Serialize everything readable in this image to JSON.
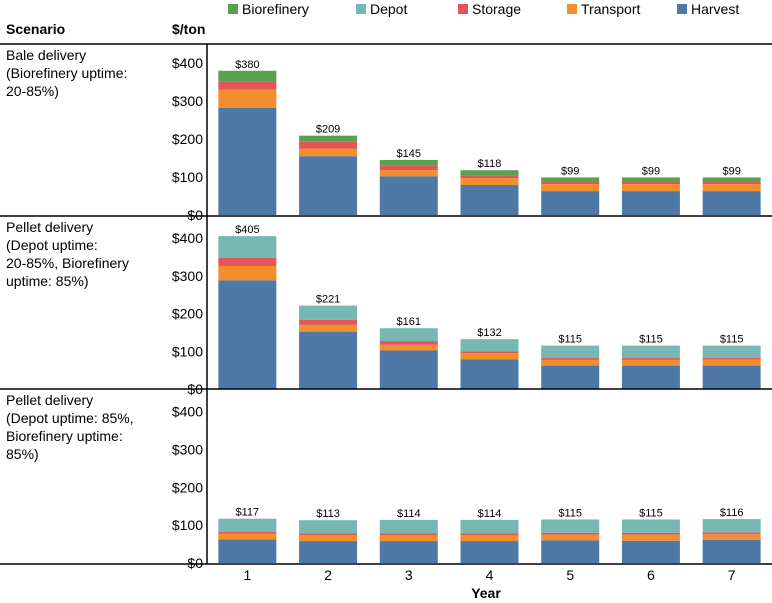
{
  "chart_data": {
    "type": "bar",
    "stacked": true,
    "xlabel": "Year",
    "categories": [
      "1",
      "2",
      "3",
      "4",
      "5",
      "6",
      "7"
    ],
    "row_header": "Scenario",
    "value_header": "$/ton",
    "legend": {
      "placement": "top",
      "entries": [
        "Biorefinery",
        "Depot",
        "Storage",
        "Transport",
        "Harvest"
      ]
    },
    "colors": {
      "Harvest": "#4e79a7",
      "Transport": "#f28e2b",
      "Storage": "#e15759",
      "Depot": "#76b7b2",
      "Biorefinery": "#59a14f"
    },
    "y_ticks": [
      "$0",
      "$100",
      "$200",
      "$300",
      "$400"
    ],
    "ylim": [
      0,
      430
    ],
    "panels": [
      {
        "label_lines": [
          "Bale delivery",
          "(Biorefinery uptime:",
          "20-85%)"
        ],
        "totals_labels": [
          "$380",
          "$209",
          "$145",
          "$118",
          "$99",
          "$99",
          "$99"
        ],
        "series": [
          {
            "name": "Harvest",
            "values": [
              282,
              155,
              102,
              79,
              63,
              63,
              63
            ]
          },
          {
            "name": "Transport",
            "values": [
              48,
              20,
              16,
              18,
              18,
              18,
              18
            ]
          },
          {
            "name": "Storage",
            "values": [
              22,
              18,
              12,
              8,
              6,
              6,
              6
            ]
          },
          {
            "name": "Depot",
            "values": [
              0,
              0,
              0,
              0,
              0,
              0,
              0
            ]
          },
          {
            "name": "Biorefinery",
            "values": [
              28,
              16,
              15,
              13,
              12,
              12,
              12
            ]
          }
        ]
      },
      {
        "label_lines": [
          "Pellet delivery",
          "(Depot uptime:",
          "20-85%, Biorefinery",
          "uptime: 85%)"
        ],
        "totals_labels": [
          "$405",
          "$221",
          "$161",
          "$132",
          "$115",
          "$115",
          "$115"
        ],
        "series": [
          {
            "name": "Harvest",
            "values": [
              288,
              152,
              102,
              79,
              62,
              62,
              62
            ]
          },
          {
            "name": "Transport",
            "values": [
              38,
              18,
              15,
              16,
              15,
              15,
              16
            ]
          },
          {
            "name": "Storage",
            "values": [
              22,
              13,
              10,
              5,
              5,
              5,
              5
            ]
          },
          {
            "name": "Depot",
            "values": [
              57,
              38,
              34,
              32,
              33,
              33,
              32
            ]
          },
          {
            "name": "Biorefinery",
            "values": [
              0,
              0,
              0,
              0,
              0,
              0,
              0
            ]
          }
        ]
      },
      {
        "label_lines": [
          "Pellet delivery",
          "(Depot uptime: 85%,",
          "Biorefinery uptime:",
          "85%)"
        ],
        "totals_labels": [
          "$117",
          "$113",
          "$114",
          "$114",
          "$115",
          "$115",
          "$116"
        ],
        "series": [
          {
            "name": "Harvest",
            "values": [
              62,
              58,
              58,
              58,
              60,
              59,
              61
            ]
          },
          {
            "name": "Transport",
            "values": [
              15,
              16,
              15,
              15,
              15,
              16,
              15
            ]
          },
          {
            "name": "Storage",
            "values": [
              5,
              4,
              5,
              5,
              5,
              5,
              5
            ]
          },
          {
            "name": "Depot",
            "values": [
              35,
              35,
              36,
              36,
              35,
              35,
              35
            ]
          },
          {
            "name": "Biorefinery",
            "values": [
              0,
              0,
              0,
              0,
              0,
              0,
              0
            ]
          }
        ]
      }
    ]
  }
}
